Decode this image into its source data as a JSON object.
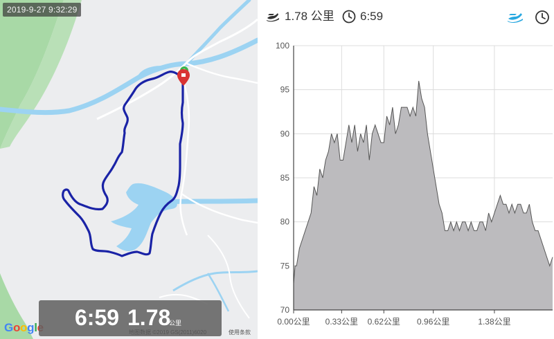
{
  "map": {
    "timestamp": "2019-9-27 9:32:29",
    "overlay": {
      "time": "6:59",
      "distance": "1.78",
      "unit": "公里"
    },
    "google_logo": [
      "G",
      "o",
      "o",
      "g",
      "l",
      "e"
    ],
    "google_colors": [
      "#4285F4",
      "#EA4335",
      "#FBBC05",
      "#4285F4",
      "#34A853",
      "#EA4335"
    ],
    "copyright": "地图数据 ©2019 GS(2011)6020",
    "terms": "使用条款",
    "colors": {
      "land": "#ecedef",
      "park": "#a8d9a6",
      "water": "#9cd3f2",
      "route": "#1a23a6",
      "marker": "#d93333",
      "start": "#3ab54a"
    }
  },
  "header": {
    "distance": "1.78 公里",
    "time": "6:59",
    "accent": "#29a8e0"
  },
  "chart_data": {
    "type": "area",
    "title": "",
    "xlabel": "",
    "ylabel": "",
    "x_unit": "公里",
    "xlim": [
      0,
      1.78
    ],
    "ylim": [
      70,
      100
    ],
    "yticks": [
      70,
      75,
      80,
      85,
      90,
      95,
      100
    ],
    "xticks": [
      "0.00公里",
      "0.33公里",
      "0.62公里",
      "0.96公里",
      "1.38公里"
    ],
    "xtick_values": [
      0.0,
      0.33,
      0.62,
      0.96,
      1.38
    ],
    "grid": true,
    "fill_color": "#bcbbbe",
    "line_color": "#555555",
    "x": [
      0.0,
      0.01,
      0.02,
      0.04,
      0.06,
      0.08,
      0.1,
      0.12,
      0.14,
      0.16,
      0.18,
      0.2,
      0.22,
      0.24,
      0.26,
      0.28,
      0.3,
      0.32,
      0.34,
      0.36,
      0.38,
      0.4,
      0.42,
      0.44,
      0.46,
      0.48,
      0.5,
      0.52,
      0.54,
      0.56,
      0.58,
      0.6,
      0.62,
      0.64,
      0.66,
      0.68,
      0.7,
      0.72,
      0.74,
      0.76,
      0.78,
      0.8,
      0.82,
      0.84,
      0.86,
      0.88,
      0.9,
      0.92,
      0.94,
      0.96,
      0.98,
      1.0,
      1.02,
      1.04,
      1.06,
      1.08,
      1.1,
      1.12,
      1.14,
      1.16,
      1.18,
      1.2,
      1.22,
      1.24,
      1.26,
      1.28,
      1.3,
      1.32,
      1.34,
      1.36,
      1.38,
      1.4,
      1.42,
      1.44,
      1.46,
      1.48,
      1.5,
      1.52,
      1.54,
      1.56,
      1.58,
      1.6,
      1.62,
      1.64,
      1.66,
      1.68,
      1.7,
      1.72,
      1.74,
      1.76,
      1.78
    ],
    "values": [
      73,
      75,
      75,
      77,
      78,
      79,
      80,
      81,
      84,
      83,
      86,
      85,
      87,
      88,
      90,
      89,
      90,
      87,
      87,
      89,
      91,
      89,
      91,
      88,
      90,
      89,
      91,
      87,
      90,
      91,
      90,
      89,
      89,
      92,
      91,
      93,
      90,
      91,
      93,
      93,
      93,
      92,
      93,
      92,
      96,
      94,
      93,
      90,
      88,
      86,
      84,
      82,
      81,
      79,
      79,
      80,
      79,
      80,
      79,
      80,
      80,
      79,
      80,
      79,
      79,
      80,
      80,
      79,
      81,
      80,
      81,
      82,
      83,
      82,
      82,
      81,
      82,
      81,
      82,
      82,
      81,
      81,
      82,
      80,
      79,
      79,
      78,
      77,
      76,
      75,
      76
    ]
  }
}
